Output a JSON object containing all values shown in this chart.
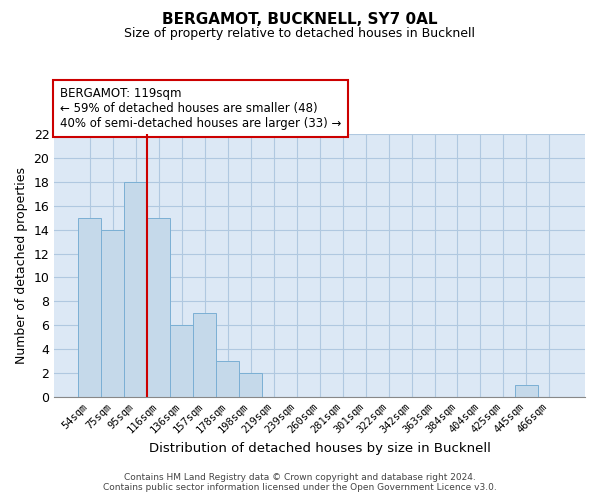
{
  "title": "BERGAMOT, BUCKNELL, SY7 0AL",
  "subtitle": "Size of property relative to detached houses in Bucknell",
  "xlabel": "Distribution of detached houses by size in Bucknell",
  "ylabel": "Number of detached properties",
  "footer_line1": "Contains HM Land Registry data © Crown copyright and database right 2024.",
  "footer_line2": "Contains public sector information licensed under the Open Government Licence v3.0.",
  "bin_labels": [
    "54sqm",
    "75sqm",
    "95sqm",
    "116sqm",
    "136sqm",
    "157sqm",
    "178sqm",
    "198sqm",
    "219sqm",
    "239sqm",
    "260sqm",
    "281sqm",
    "301sqm",
    "322sqm",
    "342sqm",
    "363sqm",
    "384sqm",
    "404sqm",
    "425sqm",
    "445sqm",
    "466sqm"
  ],
  "bar_heights": [
    15,
    14,
    18,
    15,
    6,
    7,
    3,
    2,
    0,
    0,
    0,
    0,
    0,
    0,
    0,
    0,
    0,
    0,
    0,
    1,
    0
  ],
  "bar_color": "#c5d9ea",
  "bar_edge_color": "#7bafd4",
  "plot_bg_color": "#dce8f5",
  "background_color": "#ffffff",
  "grid_color": "#b0c8e0",
  "vline_color": "#cc0000",
  "vline_x": 2.5,
  "annotation_title": "BERGAMOT: 119sqm",
  "annotation_line1": "← 59% of detached houses are smaller (48)",
  "annotation_line2": "40% of semi-detached houses are larger (33) →",
  "annotation_box_color": "#ffffff",
  "annotation_box_edge": "#cc0000",
  "ylim": [
    0,
    22
  ],
  "yticks": [
    0,
    2,
    4,
    6,
    8,
    10,
    12,
    14,
    16,
    18,
    20,
    22
  ]
}
